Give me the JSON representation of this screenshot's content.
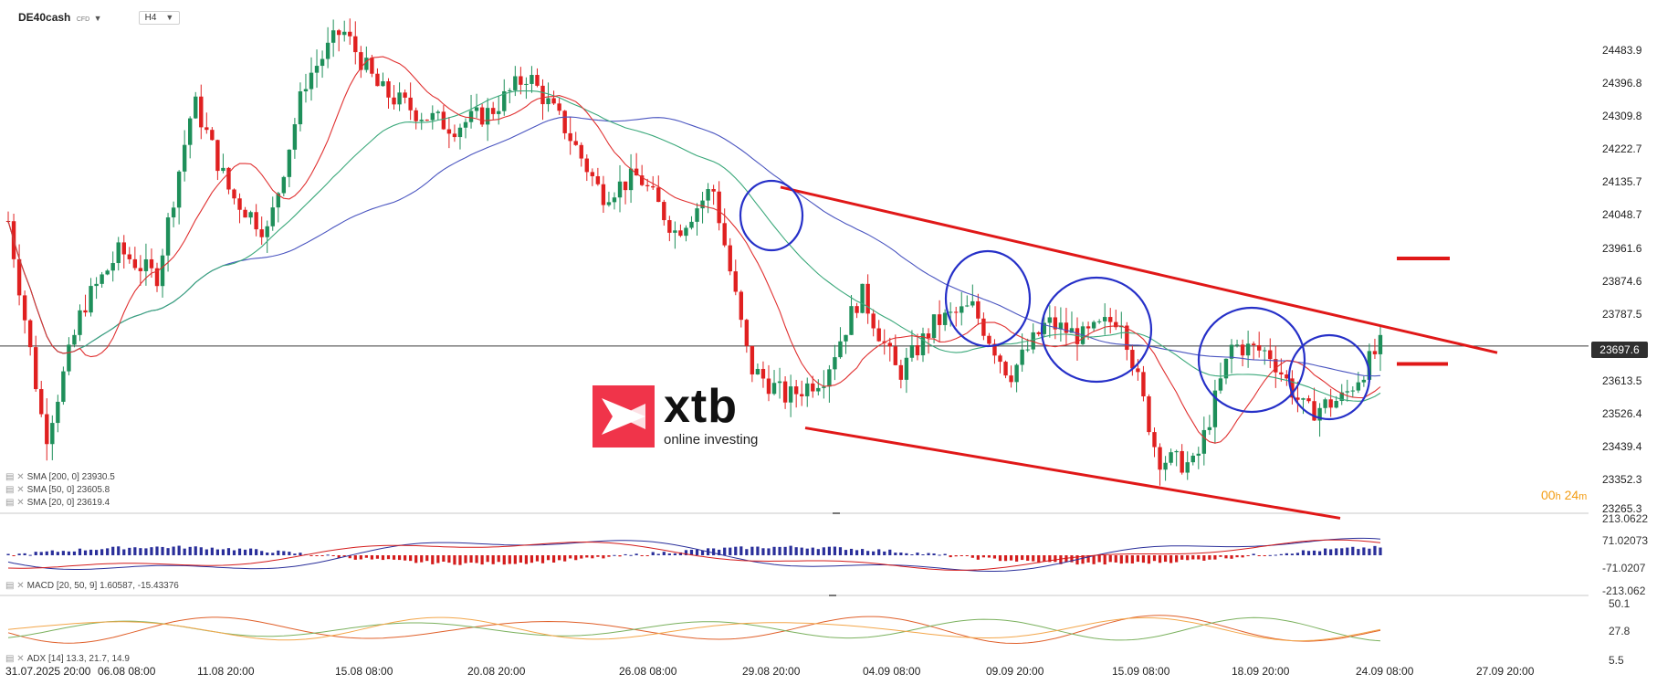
{
  "header": {
    "symbol": "DE40cash",
    "instrument_type": "CFD",
    "timeframe": "H4"
  },
  "colors": {
    "bull": "#1e8f5a",
    "bear": "#e02020",
    "sma200": "#4a55c0",
    "sma50": "#3aa87a",
    "sma20": "#e03030",
    "channel": "#e01818",
    "circle": "#2630c8",
    "macd_pos": "#2a2f9a",
    "macd_neg": "#d41c1c",
    "adx": "#e0602a",
    "di_plus": "#7bb15e",
    "di_minus": "#f3a64a"
  },
  "indicators": {
    "sma200": "SMA [200,  0]  23930.5",
    "sma50": "SMA [50,  0]  23605.8",
    "sma20": "SMA [20,  0]  23619.4",
    "macd": "MACD [20, 50, 9]  1.60587,  -15.43376",
    "adx": "ADX [14]  13.3,  21.7,  14.9"
  },
  "timer": {
    "hours": "00",
    "h": "h",
    "minutes": "24",
    "m": "m"
  },
  "current_price": "23697.6",
  "logo": {
    "name": "xtb",
    "tagline": "online investing"
  },
  "y_axis": [
    "24483.9",
    "24396.8",
    "24309.8",
    "24222.7",
    "24135.7",
    "24048.7",
    "23961.6",
    "23874.6",
    "23787.5",
    "23613.5",
    "23526.4",
    "23439.4",
    "23352.3",
    "23265.3"
  ],
  "macd_axis": [
    "213.0622",
    "71.02073",
    "-71.0207",
    "-213.062"
  ],
  "adx_axis": [
    "50.1",
    "27.8",
    "5.5"
  ],
  "x_axis": [
    "31.07.2025  20:00",
    "06.08  08:00",
    "11.08  20:00",
    "15.08  08:00",
    "20.08  20:00",
    "26.08  08:00",
    "29.08  20:00",
    "04.09  08:00",
    "09.09  20:00",
    "15.09  08:00",
    "18.09  20:00",
    "24.09  08:00",
    "27.09  20:00"
  ],
  "chart_data": {
    "type": "candlestick",
    "symbol": "DE40cash",
    "timeframe": "H4",
    "y_range": [
      23265.3,
      24483.9
    ],
    "path_points": [
      [
        "31.07",
        24030
      ],
      [
        "01.08",
        23450
      ],
      [
        "04.08",
        23800
      ],
      [
        "06.08",
        23950
      ],
      [
        "08.08",
        23880
      ],
      [
        "11.08",
        24350
      ],
      [
        "12.08",
        24100
      ],
      [
        "13.08",
        24000
      ],
      [
        "14.08",
        24400
      ],
      [
        "15.08",
        24540
      ],
      [
        "18.08",
        24380
      ],
      [
        "19.08",
        24320
      ],
      [
        "20.08",
        24280
      ],
      [
        "21.08",
        24320
      ],
      [
        "22.08",
        24420
      ],
      [
        "25.08",
        24280
      ],
      [
        "26.08",
        24100
      ],
      [
        "27.08",
        24150
      ],
      [
        "28.08",
        24000
      ],
      [
        "29.08",
        24120
      ],
      [
        "01.09",
        23640
      ],
      [
        "02.09",
        23560
      ],
      [
        "03.09",
        23620
      ],
      [
        "04.09",
        23840
      ],
      [
        "05.09",
        23620
      ],
      [
        "08.09",
        23760
      ],
      [
        "09.09",
        23800
      ],
      [
        "10.09",
        23620
      ],
      [
        "11.09",
        23760
      ],
      [
        "12.09",
        23720
      ],
      [
        "15.09",
        23780
      ],
      [
        "16.09",
        23400
      ],
      [
        "17.09",
        23380
      ],
      [
        "18.09",
        23700
      ],
      [
        "19.09",
        23680
      ],
      [
        "22.09",
        23520
      ],
      [
        "23.09",
        23560
      ],
      [
        "24.09",
        23697.6
      ]
    ],
    "channel_upper": [
      [
        "29.08",
        24120
      ],
      [
        "27.09",
        23680
      ]
    ],
    "channel_lower": [
      [
        "01.09",
        23480
      ],
      [
        "24.09",
        23240
      ]
    ],
    "levels": [
      23930.5,
      23650
    ],
    "sma200_end": 23930.5,
    "sma50_end": 23605.8,
    "sma20_end": 23619.4,
    "macd": {
      "params": [
        20,
        50,
        9
      ],
      "values": [
        1.60587,
        -15.43376
      ],
      "range": [
        -213.062,
        213.0622
      ]
    },
    "adx": {
      "period": 14,
      "values": [
        13.3,
        21.7,
        14.9
      ],
      "range": [
        5.5,
        50.1
      ]
    }
  }
}
